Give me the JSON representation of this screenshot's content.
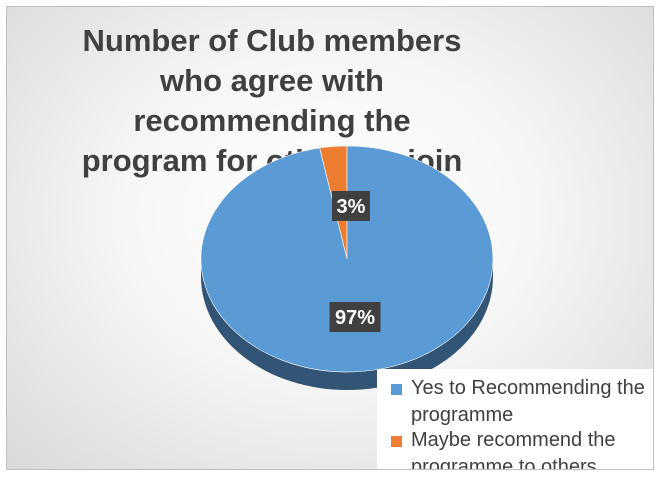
{
  "chart_data": {
    "type": "pie",
    "title": "Number of Club members who agree with recommending the program for others to join in",
    "slices": [
      {
        "label": "Yes to Recommending the programme",
        "value": 97,
        "data_label": "97%",
        "color": "#5b9bd5"
      },
      {
        "label": "Maybe recommend the programme to others",
        "value": 3,
        "data_label": "3%",
        "color": "#ed7d31"
      }
    ],
    "style": "3d",
    "legend_position": "bottom-right",
    "data_label_style": "dark box, white bold text"
  }
}
